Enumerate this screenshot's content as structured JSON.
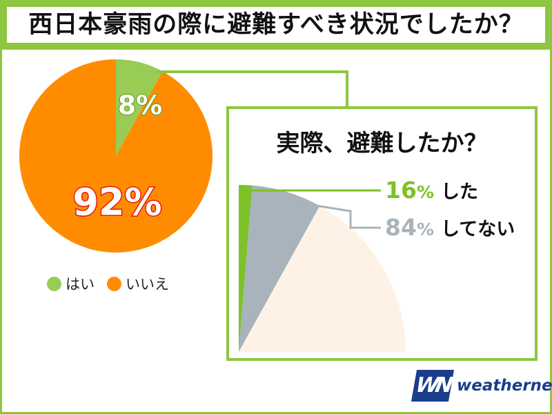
{
  "title": "西日本豪雨の際に避難すべき状況でしたか？",
  "legend": [
    {
      "label": "はい",
      "color": "#99cc55"
    },
    {
      "label": "いいえ",
      "color": "#ff8c00"
    }
  ],
  "inset": {
    "title": "実際、避難したか？"
  },
  "logo": {
    "mark": "WN",
    "text": "weathernews"
  },
  "chart_data": [
    {
      "type": "pie",
      "title": "西日本豪雨の際に避難すべき状況でしたか？",
      "slices": [
        {
          "label": "はい",
          "value": 8,
          "value_label": "8%",
          "color": "#99cc55"
        },
        {
          "label": "いいえ",
          "value": 92,
          "value_label": "92%",
          "color": "#ff8c00"
        }
      ]
    },
    {
      "type": "pie",
      "title": "実際、避難したか？",
      "parent_slice": "はい",
      "slices": [
        {
          "label": "した",
          "value": 16,
          "number": "16",
          "unit": "%",
          "color": "#7cc228"
        },
        {
          "label": "してない",
          "value": 84,
          "number": "84",
          "unit": "%",
          "color": "#a8b3bb"
        }
      ]
    }
  ]
}
